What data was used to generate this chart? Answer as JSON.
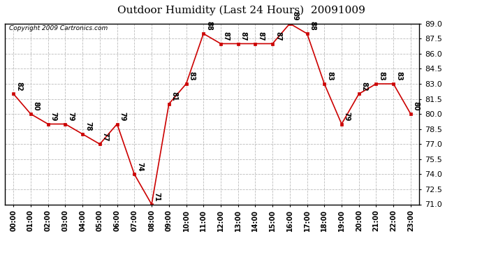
{
  "title": "Outdoor Humidity (Last 24 Hours)  20091009",
  "copyright": "Copyright 2009 Cartronics.com",
  "hours": [
    "00:00",
    "01:00",
    "02:00",
    "03:00",
    "04:00",
    "05:00",
    "06:00",
    "07:00",
    "08:00",
    "09:00",
    "10:00",
    "11:00",
    "12:00",
    "13:00",
    "14:00",
    "15:00",
    "16:00",
    "17:00",
    "18:00",
    "19:00",
    "20:00",
    "21:00",
    "22:00",
    "23:00"
  ],
  "values": [
    82,
    80,
    79,
    79,
    78,
    77,
    79,
    74,
    71,
    81,
    83,
    88,
    87,
    87,
    87,
    87,
    89,
    88,
    83,
    79,
    82,
    83,
    83,
    80
  ],
  "ylim_min": 71.0,
  "ylim_max": 89.0,
  "line_color": "#CC0000",
  "marker_color": "#CC0000",
  "bg_color": "#ffffff",
  "grid_color": "#bbbbbb",
  "title_fontsize": 11,
  "annotation_fontsize": 7,
  "ytick_fontsize": 8,
  "xtick_fontsize": 7
}
